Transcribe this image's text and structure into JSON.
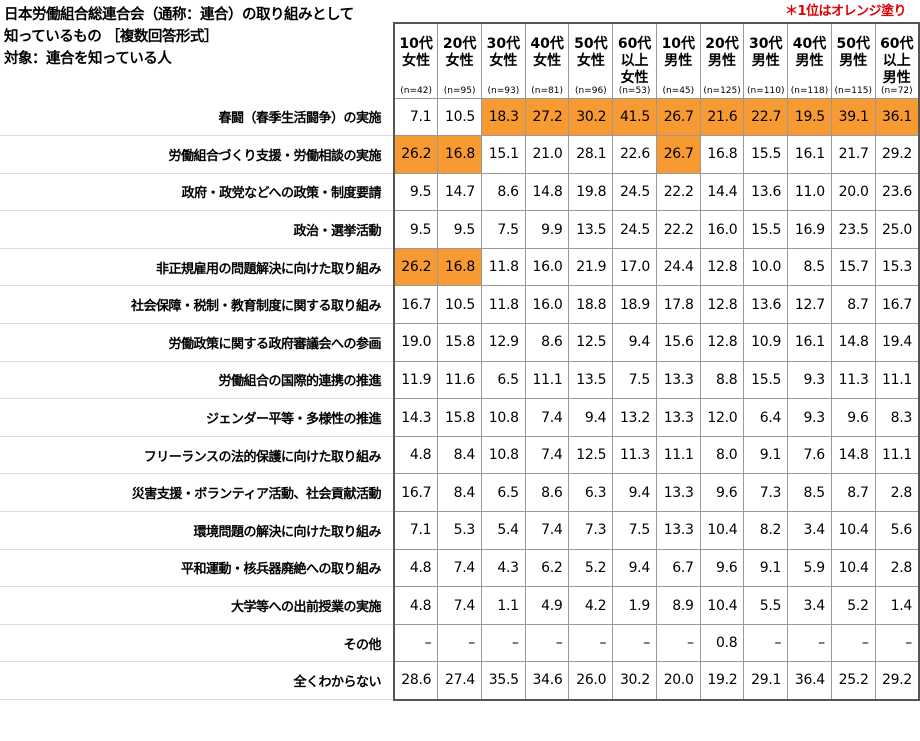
{
  "title_lines": [
    "日本労働組合総連合会（通称：連合）の取り組みとして",
    "知っているもの ［複数回答形式］",
    "対象：連合を知っている人"
  ],
  "note": "＊1位はオレンジ塗り",
  "highlight_color": "#F79A32",
  "columns": [
    {
      "label": "10代\n女性",
      "n": "(n=42)"
    },
    {
      "label": "20代\n女性",
      "n": "(n=95)"
    },
    {
      "label": "30代\n女性",
      "n": "(n=93)"
    },
    {
      "label": "40代\n女性",
      "n": "(n=81)"
    },
    {
      "label": "50代\n女性",
      "n": "(n=96)"
    },
    {
      "label": "60代\n以上\n女性",
      "n": "(n=53)"
    },
    {
      "label": "10代\n男性",
      "n": "(n=45)"
    },
    {
      "label": "20代\n男性",
      "n": "(n=125)"
    },
    {
      "label": "30代\n男性",
      "n": "(n=110)"
    },
    {
      "label": "40代\n男性",
      "n": "(n=118)"
    },
    {
      "label": "50代\n男性",
      "n": "(n=115)"
    },
    {
      "label": "60代\n以上\n男性",
      "n": "(n=72)"
    }
  ],
  "rows": [
    {
      "label": "春闘（春季生活闘争）の実施",
      "values": [
        "7.1",
        "10.5",
        "18.3",
        "27.2",
        "30.2",
        "41.5",
        "26.7",
        "21.6",
        "22.7",
        "19.5",
        "39.1",
        "36.1"
      ],
      "top": [
        2,
        3,
        4,
        5,
        6,
        7,
        8,
        9,
        10,
        11
      ]
    },
    {
      "label": "労働組合づくり支援・労働相談の実施",
      "values": [
        "26.2",
        "16.8",
        "15.1",
        "21.0",
        "28.1",
        "22.6",
        "26.7",
        "16.8",
        "15.5",
        "16.1",
        "21.7",
        "29.2"
      ],
      "top": [
        0,
        1,
        6
      ]
    },
    {
      "label": "政府・政党などへの政策・制度要請",
      "values": [
        "9.5",
        "14.7",
        "8.6",
        "14.8",
        "19.8",
        "24.5",
        "22.2",
        "14.4",
        "13.6",
        "11.0",
        "20.0",
        "23.6"
      ],
      "top": []
    },
    {
      "label": "政治・選挙活動",
      "values": [
        "9.5",
        "9.5",
        "7.5",
        "9.9",
        "13.5",
        "24.5",
        "22.2",
        "16.0",
        "15.5",
        "16.9",
        "23.5",
        "25.0"
      ],
      "top": []
    },
    {
      "label": "非正規雇用の問題解決に向けた取り組み",
      "values": [
        "26.2",
        "16.8",
        "11.8",
        "16.0",
        "21.9",
        "17.0",
        "24.4",
        "12.8",
        "10.0",
        "8.5",
        "15.7",
        "15.3"
      ],
      "top": [
        0,
        1
      ]
    },
    {
      "label": "社会保障・税制・教育制度に関する取り組み",
      "values": [
        "16.7",
        "10.5",
        "11.8",
        "16.0",
        "18.8",
        "18.9",
        "17.8",
        "12.8",
        "13.6",
        "12.7",
        "8.7",
        "16.7"
      ],
      "top": []
    },
    {
      "label": "労働政策に関する政府審議会への参画",
      "values": [
        "19.0",
        "15.8",
        "12.9",
        "8.6",
        "12.5",
        "9.4",
        "15.6",
        "12.8",
        "10.9",
        "16.1",
        "14.8",
        "19.4"
      ],
      "top": []
    },
    {
      "label": "労働組合の国際的連携の推進",
      "values": [
        "11.9",
        "11.6",
        "6.5",
        "11.1",
        "13.5",
        "7.5",
        "13.3",
        "8.8",
        "15.5",
        "9.3",
        "11.3",
        "11.1"
      ],
      "top": []
    },
    {
      "label": "ジェンダー平等・多様性の推進",
      "values": [
        "14.3",
        "15.8",
        "10.8",
        "7.4",
        "9.4",
        "13.2",
        "13.3",
        "12.0",
        "6.4",
        "9.3",
        "9.6",
        "8.3"
      ],
      "top": []
    },
    {
      "label": "フリーランスの法的保護に向けた取り組み",
      "values": [
        "4.8",
        "8.4",
        "10.8",
        "7.4",
        "12.5",
        "11.3",
        "11.1",
        "8.0",
        "9.1",
        "7.6",
        "14.8",
        "11.1"
      ],
      "top": []
    },
    {
      "label": "災害支援・ボランティア活動、社会貢献活動",
      "values": [
        "16.7",
        "8.4",
        "6.5",
        "8.6",
        "6.3",
        "9.4",
        "13.3",
        "9.6",
        "7.3",
        "8.5",
        "8.7",
        "2.8"
      ],
      "top": []
    },
    {
      "label": "環境問題の解決に向けた取り組み",
      "values": [
        "7.1",
        "5.3",
        "5.4",
        "7.4",
        "7.3",
        "7.5",
        "13.3",
        "10.4",
        "8.2",
        "3.4",
        "10.4",
        "5.6"
      ],
      "top": []
    },
    {
      "label": "平和運動・核兵器廃絶への取り組み",
      "values": [
        "4.8",
        "7.4",
        "4.3",
        "6.2",
        "5.2",
        "9.4",
        "6.7",
        "9.6",
        "9.1",
        "5.9",
        "10.4",
        "2.8"
      ],
      "top": []
    },
    {
      "label": "大学等への出前授業の実施",
      "values": [
        "4.8",
        "7.4",
        "1.1",
        "4.9",
        "4.2",
        "1.9",
        "8.9",
        "10.4",
        "5.5",
        "3.4",
        "5.2",
        "1.4"
      ],
      "top": []
    },
    {
      "label": "その他",
      "values": [
        "–",
        "–",
        "–",
        "–",
        "–",
        "–",
        "–",
        "0.8",
        "–",
        "–",
        "–",
        "–"
      ],
      "top": []
    },
    {
      "label": "全くわからない",
      "values": [
        "28.6",
        "27.4",
        "35.5",
        "34.6",
        "26.0",
        "30.2",
        "20.0",
        "19.2",
        "29.1",
        "36.4",
        "25.2",
        "29.2"
      ],
      "top": []
    }
  ]
}
